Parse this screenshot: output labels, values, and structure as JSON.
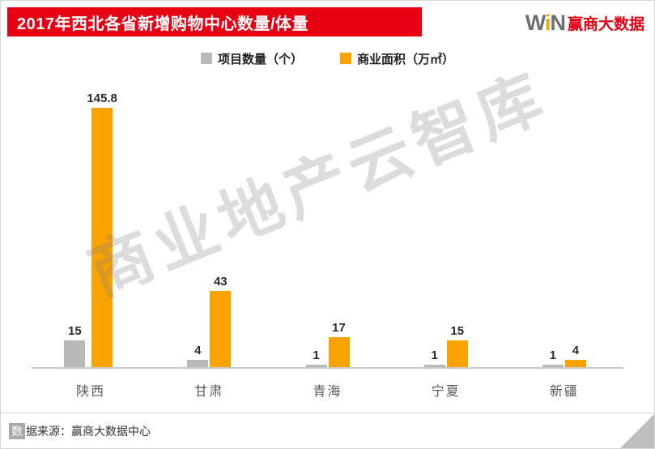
{
  "header": {
    "title": "2017年西北各省新增购物中心数量/体量",
    "bg_color": "#e60012"
  },
  "logo": {
    "win_w": "W",
    "win_i": "i",
    "win_n": "N",
    "name": "赢商大数据"
  },
  "legend": [
    {
      "label": "项目数量（个）",
      "color": "#b9b9b9"
    },
    {
      "label": "商业面积（万㎡）",
      "color": "#f9a300"
    }
  ],
  "watermark": "商业地产云智库",
  "footer": {
    "highlight": "数",
    "rest": "据来源：赢商大数据中心"
  },
  "chart_data": {
    "type": "bar",
    "categories": [
      "陕西",
      "甘肃",
      "青海",
      "宁夏",
      "新疆"
    ],
    "series": [
      {
        "name": "项目数量（个）",
        "color": "#b9b9b9",
        "values": [
          15,
          4,
          1,
          1,
          1
        ]
      },
      {
        "name": "商业面积（万㎡）",
        "color": "#f9a300",
        "values": [
          145.8,
          43,
          17,
          15,
          4
        ]
      }
    ],
    "title": "2017年西北各省新增购物中心数量/体量",
    "xlabel": "",
    "ylabel": "",
    "ylim": [
      0,
      160
    ],
    "grid": false,
    "legend_position": "top",
    "bar_value_labels": true
  }
}
